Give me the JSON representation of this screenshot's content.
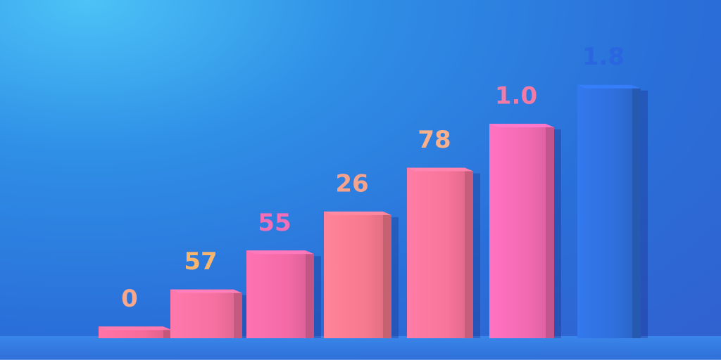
{
  "chart_data": {
    "type": "bar",
    "title": "",
    "xlabel": "",
    "ylabel": "",
    "categories": [
      "",
      "",
      "",
      "",
      "",
      "",
      ""
    ],
    "value_labels": [
      "0",
      "57",
      "55",
      "26",
      "78",
      "1.0",
      "1.8"
    ],
    "values": [
      0.12,
      0.5,
      0.9,
      1.3,
      1.75,
      2.2,
      2.6
    ],
    "ylim": [
      0,
      2.8
    ],
    "grid": false,
    "legend": "none",
    "colors": {
      "bars": [
        "#f66b9a",
        "#f670a0",
        "#f36aa6",
        "#f7798f",
        "#f8749a",
        "#f26ab2",
        "#2f6fdc"
      ],
      "labels": [
        "#f7a78c",
        "#f8b56e",
        "#f070b8",
        "#f6a38e",
        "#f8b08c",
        "#f27aa6",
        "#2a66e0"
      ]
    }
  }
}
